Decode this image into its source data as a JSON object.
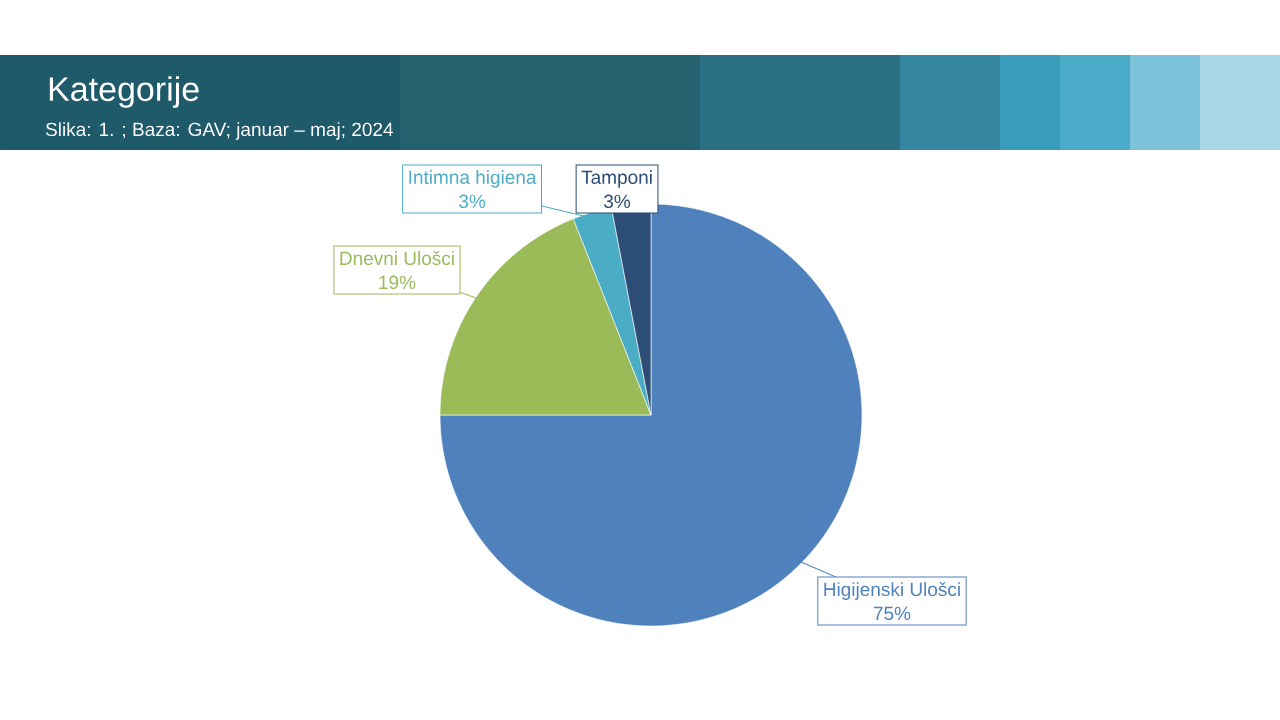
{
  "chart_data": {
    "type": "pie",
    "title": "Kategorije",
    "subtitle": "Slika: 1. ; Baza: GAV; januar – maj; 2024",
    "categories": [
      "Higijenski Ulošci",
      "Dnevni Ulošci",
      "Intimna higiena",
      "Tamponi"
    ],
    "values": [
      75,
      19,
      3,
      3
    ],
    "value_labels": [
      "75%",
      "19%",
      "3%",
      "3%"
    ],
    "colors": [
      "#4f81bd",
      "#9bbb59",
      "#4bacc6",
      "#2c4d75"
    ]
  }
}
